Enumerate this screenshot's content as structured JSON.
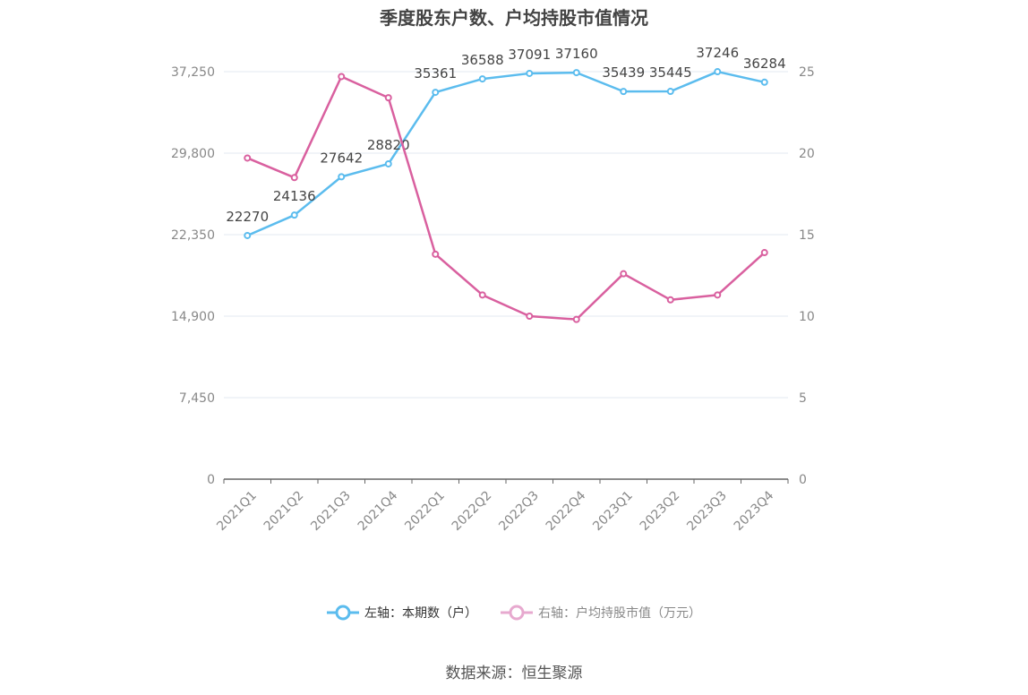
{
  "chart_data": {
    "type": "line",
    "title": "季度股东户数、户均持股市值情况",
    "categories": [
      "2021Q1",
      "2021Q2",
      "2021Q3",
      "2021Q4",
      "2022Q1",
      "2022Q2",
      "2022Q3",
      "2022Q4",
      "2023Q1",
      "2023Q2",
      "2023Q3",
      "2023Q4"
    ],
    "left_axis": {
      "ticks": [
        "0",
        "7,450",
        "14,900",
        "22,350",
        "29,800",
        "37,250"
      ],
      "ylim": [
        0,
        37250
      ]
    },
    "right_axis": {
      "ticks": [
        "0",
        "5",
        "10",
        "15",
        "20",
        "25"
      ],
      "ylim": [
        0,
        25
      ]
    },
    "series": [
      {
        "name": "左轴：本期数（户）",
        "axis": "left",
        "color": "#5bbcee",
        "values": [
          22270,
          24136,
          27642,
          28820,
          35361,
          36588,
          37091,
          37160,
          35439,
          35445,
          37246,
          36284
        ],
        "labels": [
          "22270",
          "24136",
          "27642",
          "28820",
          "35361",
          "36588",
          "37091",
          "37160",
          "35439",
          "35445",
          "37246",
          "36284"
        ]
      },
      {
        "name": "右轴：户均持股市值（万元）",
        "axis": "right",
        "color": "#d9609f",
        "values": [
          19.7,
          18.5,
          24.7,
          23.4,
          13.8,
          11.3,
          10.0,
          9.8,
          12.6,
          11.0,
          11.3,
          13.9
        ]
      }
    ],
    "grid": true,
    "legend_position": "bottom"
  },
  "legend": [
    {
      "label": "左轴：本期数（户）",
      "color": "#5bbcee"
    },
    {
      "label": "右轴：户均持股市值（万元）",
      "color": "#e7a9cf"
    }
  ],
  "source": "数据来源：恒生聚源"
}
